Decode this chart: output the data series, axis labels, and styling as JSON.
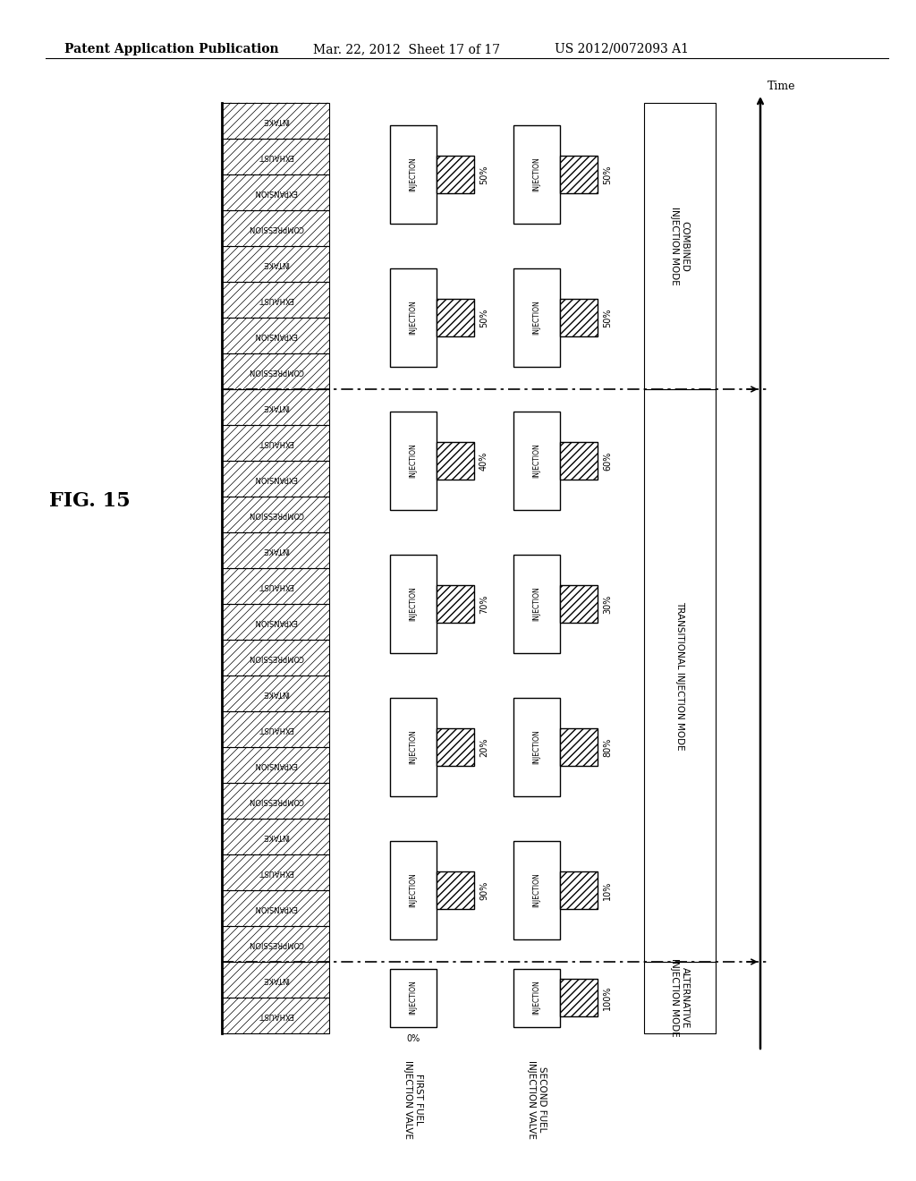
{
  "header_left": "Patent Application Publication",
  "header_mid": "Mar. 22, 2012  Sheet 17 of 17",
  "header_right": "US 2012/0072093 A1",
  "figure_label": "FIG. 15",
  "time_label": "Time",
  "first_valve_label": "FIRST FUEL\nINJECTION VALVE",
  "second_valve_label": "SECOND FUEL\nINJECTION VALVE",
  "cycle_labels_full": [
    "COMPRESSION",
    "EXPANSION",
    "EXHAUST",
    "INTAKE"
  ],
  "cycle_labels_alt": [
    "EXHAUST",
    "INTAKE"
  ],
  "cycles": [
    {
      "first": 0,
      "second": 100,
      "labels": [
        "EXHAUST",
        "INTAKE"
      ],
      "partial": true
    },
    {
      "first": 90,
      "second": 10,
      "labels": [
        "COMPRESSION",
        "EXPANSION",
        "EXHAUST",
        "INTAKE"
      ],
      "partial": false
    },
    {
      "first": 20,
      "second": 80,
      "labels": [
        "COMPRESSION",
        "EXPANSION",
        "EXHAUST",
        "INTAKE"
      ],
      "partial": false
    },
    {
      "first": 70,
      "second": 30,
      "labels": [
        "COMPRESSION",
        "EXPANSION",
        "EXHAUST",
        "INTAKE"
      ],
      "partial": false
    },
    {
      "first": 40,
      "second": 60,
      "labels": [
        "COMPRESSION",
        "EXPANSION",
        "EXHAUST",
        "INTAKE"
      ],
      "partial": false
    },
    {
      "first": 50,
      "second": 50,
      "labels": [
        "COMPRESSION",
        "EXPANSION",
        "EXHAUST",
        "INTAKE"
      ],
      "partial": false
    },
    {
      "first": 50,
      "second": 50,
      "labels": [
        "COMPRESSION",
        "EXPANSION",
        "EXHAUST",
        "INTAKE"
      ],
      "partial": false
    }
  ],
  "mode_regions": [
    {
      "name": "ALTERNATIVE\nINJECTION MODE",
      "cycle_indices": [
        0
      ]
    },
    {
      "name": "TRANSITIONAL INJECTION MODE",
      "cycle_indices": [
        1,
        2,
        3,
        4
      ]
    },
    {
      "name": "COMBINED\nINJECTION MODE",
      "cycle_indices": [
        5,
        6
      ]
    }
  ],
  "dashdot_after_cycles": [
    0,
    4
  ],
  "bg_color": "#ffffff"
}
